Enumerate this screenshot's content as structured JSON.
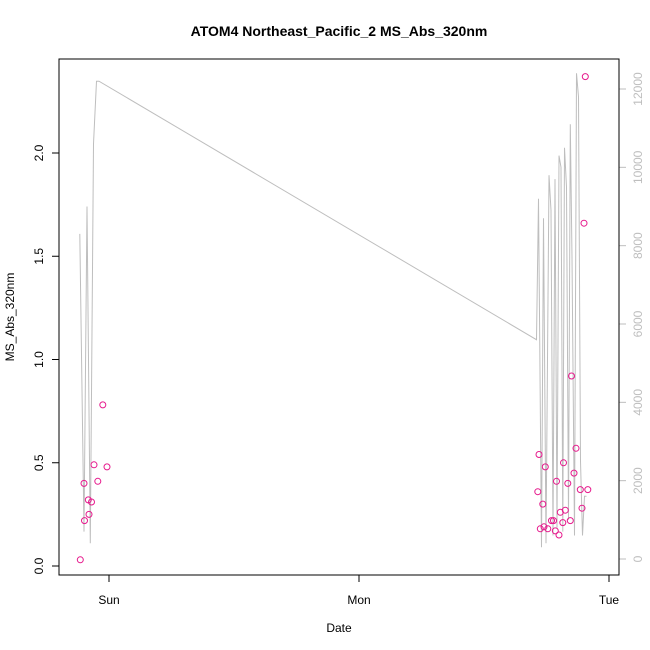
{
  "chart_data": {
    "type": "scatter",
    "title": "ATOM4 Northeast_Pacific_2 MS_Abs_320nm",
    "xlabel": "Date",
    "ylabel": "MS_Abs_320nm",
    "ylim": [
      0,
      2.4
    ],
    "y_ticks": [
      "0.0",
      "0.5",
      "1.0",
      "1.5",
      "2.0"
    ],
    "y2lim": [
      0,
      12500
    ],
    "y2_ticks": [
      "0",
      "2000",
      "4000",
      "6000",
      "8000",
      "10000",
      "12000"
    ],
    "x_axis_unit": "days",
    "xlim": [
      -0.12,
      2.0
    ],
    "x_ticks": [
      {
        "label": "Sun",
        "value": 0
      },
      {
        "label": "Mon",
        "value": 1
      },
      {
        "label": "Tue",
        "value": 2
      }
    ],
    "grid": false,
    "colors": {
      "points": "#e6198c",
      "line": "#bebebe",
      "right_axis": "#bebebe"
    },
    "series": [
      {
        "kind": "points",
        "axis": "left",
        "x": [
          -0.115,
          -0.1,
          -0.098,
          -0.083,
          -0.08,
          -0.07,
          -0.06,
          -0.045,
          -0.025,
          -0.008,
          1.715,
          1.72,
          1.725,
          1.735,
          1.74,
          1.745,
          1.755,
          1.77,
          1.778,
          1.785,
          1.79,
          1.8,
          1.805,
          1.815,
          1.818,
          1.825,
          1.835,
          1.845,
          1.85,
          1.86,
          1.868,
          1.885,
          1.892,
          1.9,
          1.905,
          1.915
        ],
        "y": [
          0.03,
          0.4,
          0.22,
          0.32,
          0.25,
          0.31,
          0.49,
          0.41,
          0.78,
          0.48,
          0.36,
          0.54,
          0.18,
          0.3,
          0.19,
          0.48,
          0.18,
          0.22,
          0.22,
          0.17,
          0.41,
          0.15,
          0.26,
          0.21,
          0.5,
          0.27,
          0.4,
          0.22,
          0.92,
          0.45,
          0.57,
          0.37,
          0.28,
          1.66,
          2.37,
          0.37
        ]
      },
      {
        "kind": "line",
        "axis": "right",
        "x": [
          -0.117,
          -0.1,
          -0.088,
          -0.075,
          -0.062,
          -0.05,
          -0.04,
          1.71,
          1.718,
          1.73,
          1.738,
          1.748,
          1.76,
          1.768,
          1.776,
          1.784,
          1.792,
          1.8,
          1.808,
          1.815,
          1.822,
          1.83,
          1.838,
          1.845,
          1.852,
          1.862,
          1.87,
          1.878,
          1.886,
          1.894,
          1.902,
          1.91
        ],
        "y": [
          8300,
          700,
          9000,
          400,
          10600,
          12200,
          12200,
          5600,
          9200,
          300,
          8700,
          400,
          9800,
          8900,
          600,
          9700,
          800,
          10300,
          10000,
          700,
          10500,
          9500,
          1000,
          11100,
          7700,
          600,
          12400,
          11800,
          2500,
          600,
          1600,
          1600
        ]
      }
    ]
  }
}
